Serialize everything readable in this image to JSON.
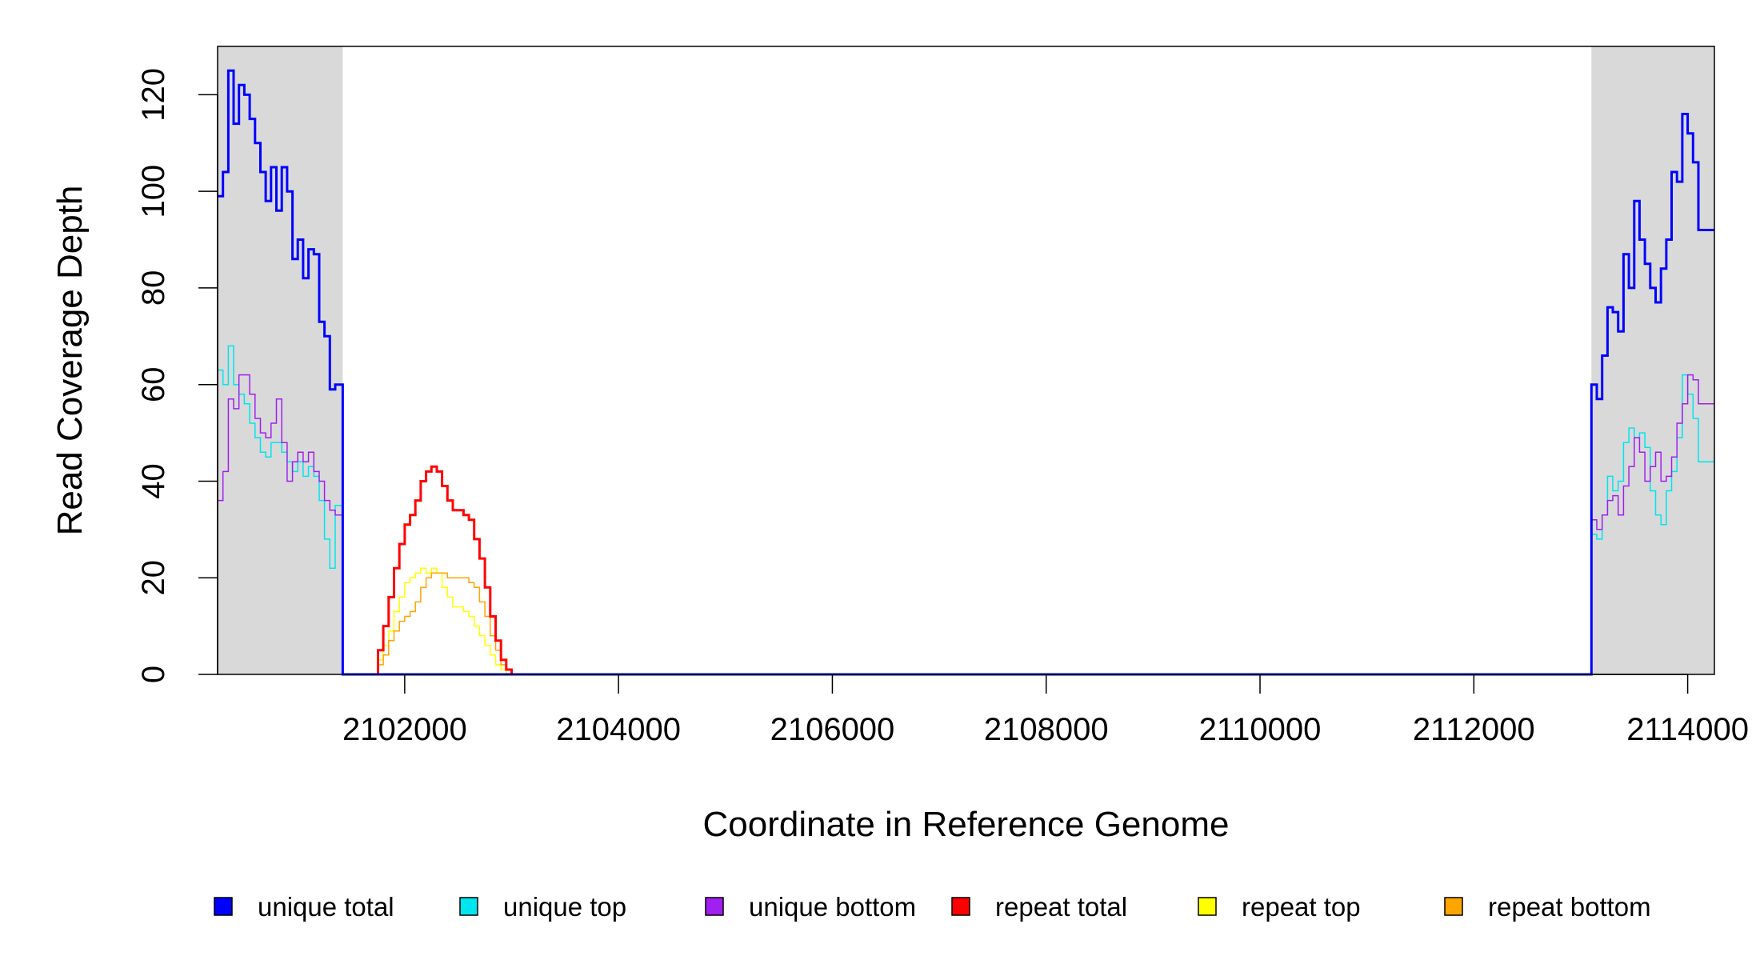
{
  "chart_data": {
    "type": "line",
    "xlabel": "Coordinate in Reference Genome",
    "ylabel": "Read Coverage Depth",
    "xlim": [
      2100250,
      2114250
    ],
    "ylim": [
      0,
      130
    ],
    "xticks": [
      2102000,
      2104000,
      2106000,
      2108000,
      2110000,
      2112000,
      2114000
    ],
    "xtick_labels": [
      "2102000",
      "2104000",
      "2106000",
      "2108000",
      "2110000",
      "2112000",
      "2114000"
    ],
    "yticks": [
      0,
      20,
      40,
      60,
      80,
      100,
      120
    ],
    "ytick_labels": [
      "0",
      "20",
      "40",
      "60",
      "80",
      "100",
      "120"
    ],
    "shaded_regions": [
      {
        "x0": 2100250,
        "x1": 2101420,
        "color": "#d9d9d9"
      },
      {
        "x0": 2113100,
        "x1": 2114250,
        "color": "#d9d9d9"
      }
    ],
    "legend_position": "bottom",
    "series": [
      {
        "name": "unique total",
        "color": "#0000ff",
        "width": 3,
        "x": [
          2100250,
          2100300,
          2100350,
          2100400,
          2100450,
          2100500,
          2100550,
          2100600,
          2100650,
          2100700,
          2100750,
          2100800,
          2100850,
          2100900,
          2100950,
          2101000,
          2101050,
          2101100,
          2101150,
          2101200,
          2101250,
          2101300,
          2101350,
          2101400,
          2101420,
          2101430,
          2113080,
          2113100,
          2113150,
          2113200,
          2113250,
          2113300,
          2113350,
          2113400,
          2113450,
          2113500,
          2113550,
          2113600,
          2113650,
          2113700,
          2113750,
          2113800,
          2113850,
          2113900,
          2113950,
          2114000,
          2114050,
          2114100,
          2114150,
          2114200,
          2114250
        ],
        "y": [
          99,
          104,
          125,
          114,
          122,
          120,
          115,
          110,
          104,
          98,
          105,
          96,
          105,
          100,
          86,
          90,
          82,
          88,
          87,
          73,
          70,
          59,
          60,
          60,
          0,
          0,
          0,
          60,
          57,
          66,
          76,
          75,
          71,
          87,
          80,
          98,
          90,
          85,
          80,
          77,
          84,
          90,
          104,
          102,
          116,
          112,
          106,
          92,
          92,
          92,
          92
        ]
      },
      {
        "name": "unique top",
        "color": "#00e5ee",
        "width": 1.5,
        "x": [
          2100250,
          2100300,
          2100350,
          2100400,
          2100450,
          2100500,
          2100550,
          2100600,
          2100650,
          2100700,
          2100750,
          2100800,
          2100850,
          2100900,
          2100950,
          2101000,
          2101050,
          2101100,
          2101150,
          2101200,
          2101250,
          2101300,
          2101350,
          2101400,
          2101420,
          2101430,
          2113080,
          2113100,
          2113150,
          2113200,
          2113250,
          2113300,
          2113350,
          2113400,
          2113450,
          2113500,
          2113550,
          2113600,
          2113650,
          2113700,
          2113750,
          2113800,
          2113850,
          2113900,
          2113950,
          2114000,
          2114050,
          2114100,
          2114150,
          2114200,
          2114250
        ],
        "y": [
          63,
          60,
          68,
          60,
          58,
          56,
          52,
          49,
          46,
          45,
          48,
          48,
          46,
          44,
          42,
          44,
          41,
          43,
          41,
          36,
          28,
          22,
          35,
          35,
          0,
          0,
          0,
          29,
          28,
          33,
          41,
          38,
          40,
          48,
          51,
          49,
          50,
          47,
          38,
          33,
          31,
          38,
          42,
          49,
          62,
          58,
          53,
          44,
          44,
          44,
          44
        ]
      },
      {
        "name": "unique bottom",
        "color": "#a020f0",
        "width": 1.5,
        "x": [
          2100250,
          2100300,
          2100350,
          2100400,
          2100450,
          2100500,
          2100550,
          2100600,
          2100650,
          2100700,
          2100750,
          2100800,
          2100850,
          2100900,
          2100950,
          2101000,
          2101050,
          2101100,
          2101150,
          2101200,
          2101250,
          2101300,
          2101350,
          2101400,
          2101420,
          2101430,
          2113080,
          2113100,
          2113150,
          2113200,
          2113250,
          2113300,
          2113350,
          2113400,
          2113450,
          2113500,
          2113550,
          2113600,
          2113650,
          2113700,
          2113750,
          2113800,
          2113850,
          2113900,
          2113950,
          2114000,
          2114050,
          2114100,
          2114150,
          2114200,
          2114250
        ],
        "y": [
          36,
          42,
          57,
          55,
          62,
          62,
          58,
          53,
          50,
          49,
          52,
          57,
          48,
          40,
          44,
          46,
          44,
          46,
          42,
          40,
          36,
          34,
          33,
          33,
          0,
          0,
          0,
          32,
          30,
          33,
          36,
          37,
          33,
          39,
          43,
          49,
          46,
          40,
          43,
          46,
          40,
          41,
          45,
          52,
          56,
          62,
          61,
          56,
          56,
          56,
          56
        ]
      },
      {
        "name": "repeat total",
        "color": "#ff0000",
        "width": 3,
        "x": [
          2101420,
          2101700,
          2101750,
          2101800,
          2101850,
          2101900,
          2101950,
          2102000,
          2102050,
          2102100,
          2102150,
          2102200,
          2102250,
          2102300,
          2102350,
          2102400,
          2102450,
          2102500,
          2102550,
          2102600,
          2102650,
          2102700,
          2102750,
          2102800,
          2102850,
          2102900,
          2102950,
          2103000,
          2113080
        ],
        "y": [
          0,
          0,
          5,
          10,
          16,
          22,
          27,
          31,
          33,
          36,
          40,
          42,
          43,
          42,
          39,
          36,
          34,
          34,
          33,
          32,
          28,
          24,
          18,
          12,
          7,
          3,
          1,
          0,
          0
        ]
      },
      {
        "name": "repeat top",
        "color": "#ffff00",
        "width": 1.5,
        "x": [
          2101420,
          2101700,
          2101750,
          2101800,
          2101850,
          2101900,
          2101950,
          2102000,
          2102050,
          2102100,
          2102150,
          2102200,
          2102250,
          2102300,
          2102350,
          2102400,
          2102450,
          2102500,
          2102550,
          2102600,
          2102650,
          2102700,
          2102750,
          2102800,
          2102850,
          2102900,
          2102950,
          2103000,
          2113080
        ],
        "y": [
          0,
          0,
          3,
          6,
          9,
          13,
          16,
          19,
          20,
          21,
          22,
          21,
          22,
          21,
          18,
          16,
          14,
          14,
          13,
          12,
          10,
          8,
          6,
          4,
          2,
          1,
          0,
          0,
          0
        ]
      },
      {
        "name": "repeat bottom",
        "color": "#ffa500",
        "width": 1.5,
        "x": [
          2101420,
          2101700,
          2101750,
          2101800,
          2101850,
          2101900,
          2101950,
          2102000,
          2102050,
          2102100,
          2102150,
          2102200,
          2102250,
          2102300,
          2102350,
          2102400,
          2102450,
          2102500,
          2102550,
          2102600,
          2102650,
          2102700,
          2102750,
          2102800,
          2102850,
          2102900,
          2102950,
          2103000,
          2113080
        ],
        "y": [
          0,
          0,
          2,
          4,
          7,
          9,
          11,
          12,
          13,
          15,
          18,
          20,
          21,
          21,
          21,
          20,
          20,
          20,
          20,
          19,
          18,
          15,
          12,
          8,
          5,
          2,
          1,
          0,
          0
        ]
      }
    ]
  }
}
